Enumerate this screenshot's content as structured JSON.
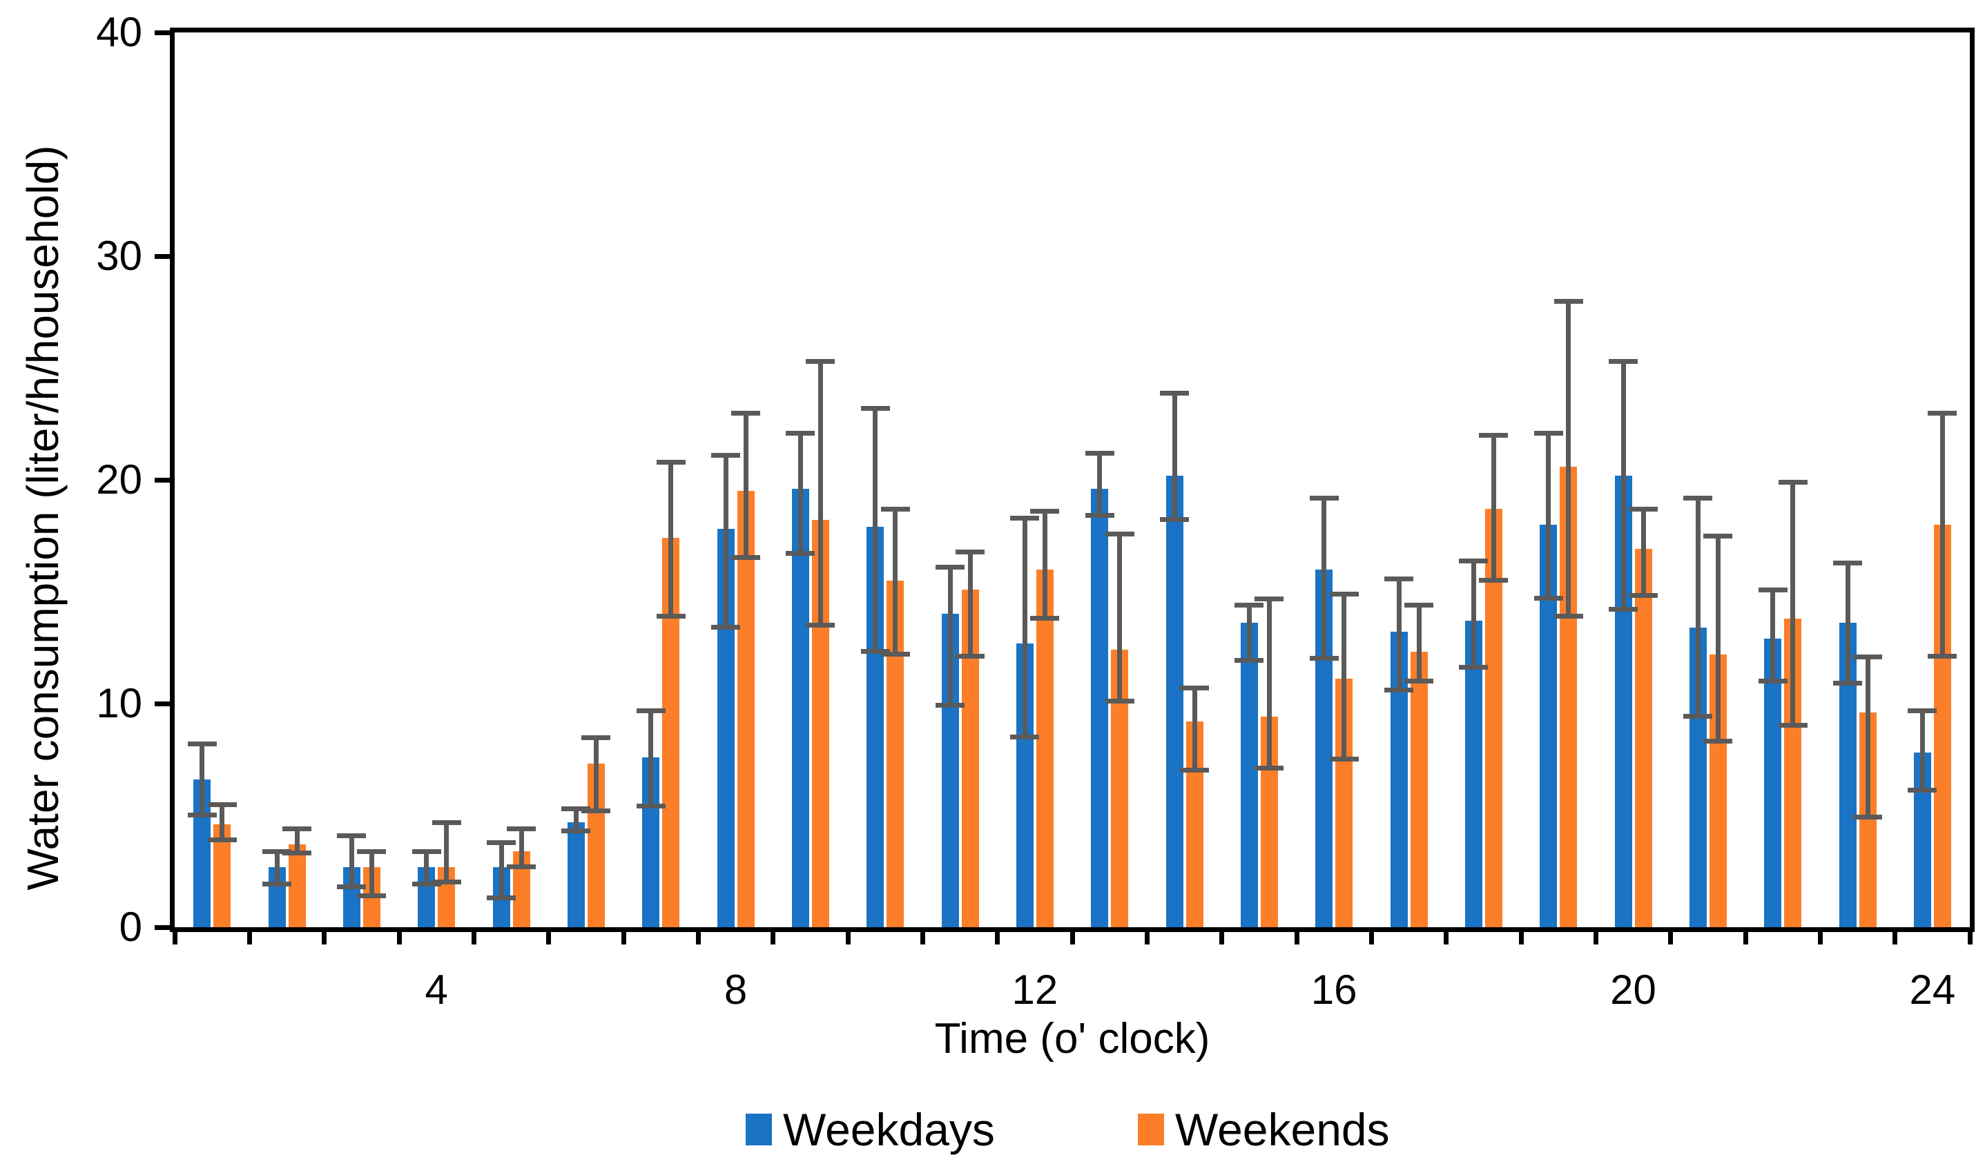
{
  "chart_data": {
    "type": "bar",
    "title": "",
    "xlabel": "Time (o' clock)",
    "ylabel": "Water consumption (liter/h/household)",
    "ylim": [
      0,
      40
    ],
    "yticks": [
      0,
      10,
      20,
      30,
      40
    ],
    "xtick_labels": [
      4,
      8,
      12,
      16,
      20,
      24
    ],
    "grid": "off",
    "legend_position": "bottom",
    "error_bar_color": "#5A5A5A",
    "categories": [
      1,
      2,
      3,
      4,
      5,
      6,
      7,
      8,
      9,
      10,
      11,
      12,
      13,
      14,
      15,
      16,
      17,
      18,
      19,
      20,
      21,
      22,
      23,
      24
    ],
    "series": [
      {
        "name": "Weekdays",
        "color": "#1A73C4",
        "values": [
          6.6,
          2.7,
          2.7,
          2.7,
          2.7,
          4.7,
          7.6,
          17.8,
          19.6,
          17.9,
          14.0,
          12.7,
          19.6,
          20.2,
          13.6,
          16.0,
          13.2,
          13.7,
          18.0,
          20.2,
          13.4,
          12.9,
          13.6,
          7.8
        ],
        "err_low": [
          5.0,
          1.9,
          1.8,
          1.9,
          1.3,
          4.3,
          5.4,
          13.4,
          16.7,
          12.3,
          9.9,
          8.5,
          18.4,
          18.2,
          11.9,
          12.0,
          10.6,
          11.6,
          14.7,
          14.2,
          9.4,
          11.0,
          10.9,
          6.1
        ],
        "err_high": [
          8.2,
          3.4,
          4.1,
          3.4,
          3.8,
          5.3,
          9.7,
          21.1,
          22.1,
          23.2,
          16.1,
          18.3,
          21.2,
          23.9,
          14.4,
          19.2,
          15.6,
          16.4,
          22.1,
          25.3,
          19.2,
          15.1,
          16.3,
          9.7
        ]
      },
      {
        "name": "Weekends",
        "color": "#FD7E28",
        "values": [
          4.6,
          3.7,
          2.7,
          2.7,
          3.4,
          7.3,
          17.4,
          19.5,
          18.2,
          15.5,
          15.1,
          16.0,
          12.4,
          9.2,
          9.4,
          11.1,
          12.3,
          18.7,
          20.6,
          16.9,
          12.2,
          13.8,
          9.6,
          18.0
        ],
        "err_low": [
          3.9,
          3.3,
          1.4,
          2.0,
          2.7,
          5.2,
          13.9,
          16.5,
          13.5,
          12.2,
          12.1,
          13.8,
          10.1,
          7.0,
          7.1,
          7.5,
          11.0,
          15.5,
          13.9,
          14.8,
          8.3,
          9.0,
          4.9,
          12.1
        ],
        "err_high": [
          5.5,
          4.4,
          3.4,
          4.7,
          4.4,
          8.5,
          20.8,
          23.0,
          25.3,
          18.7,
          16.8,
          18.6,
          17.6,
          10.7,
          14.7,
          14.9,
          14.4,
          22.0,
          28.0,
          18.7,
          17.5,
          19.9,
          12.1,
          23.0
        ]
      }
    ]
  }
}
